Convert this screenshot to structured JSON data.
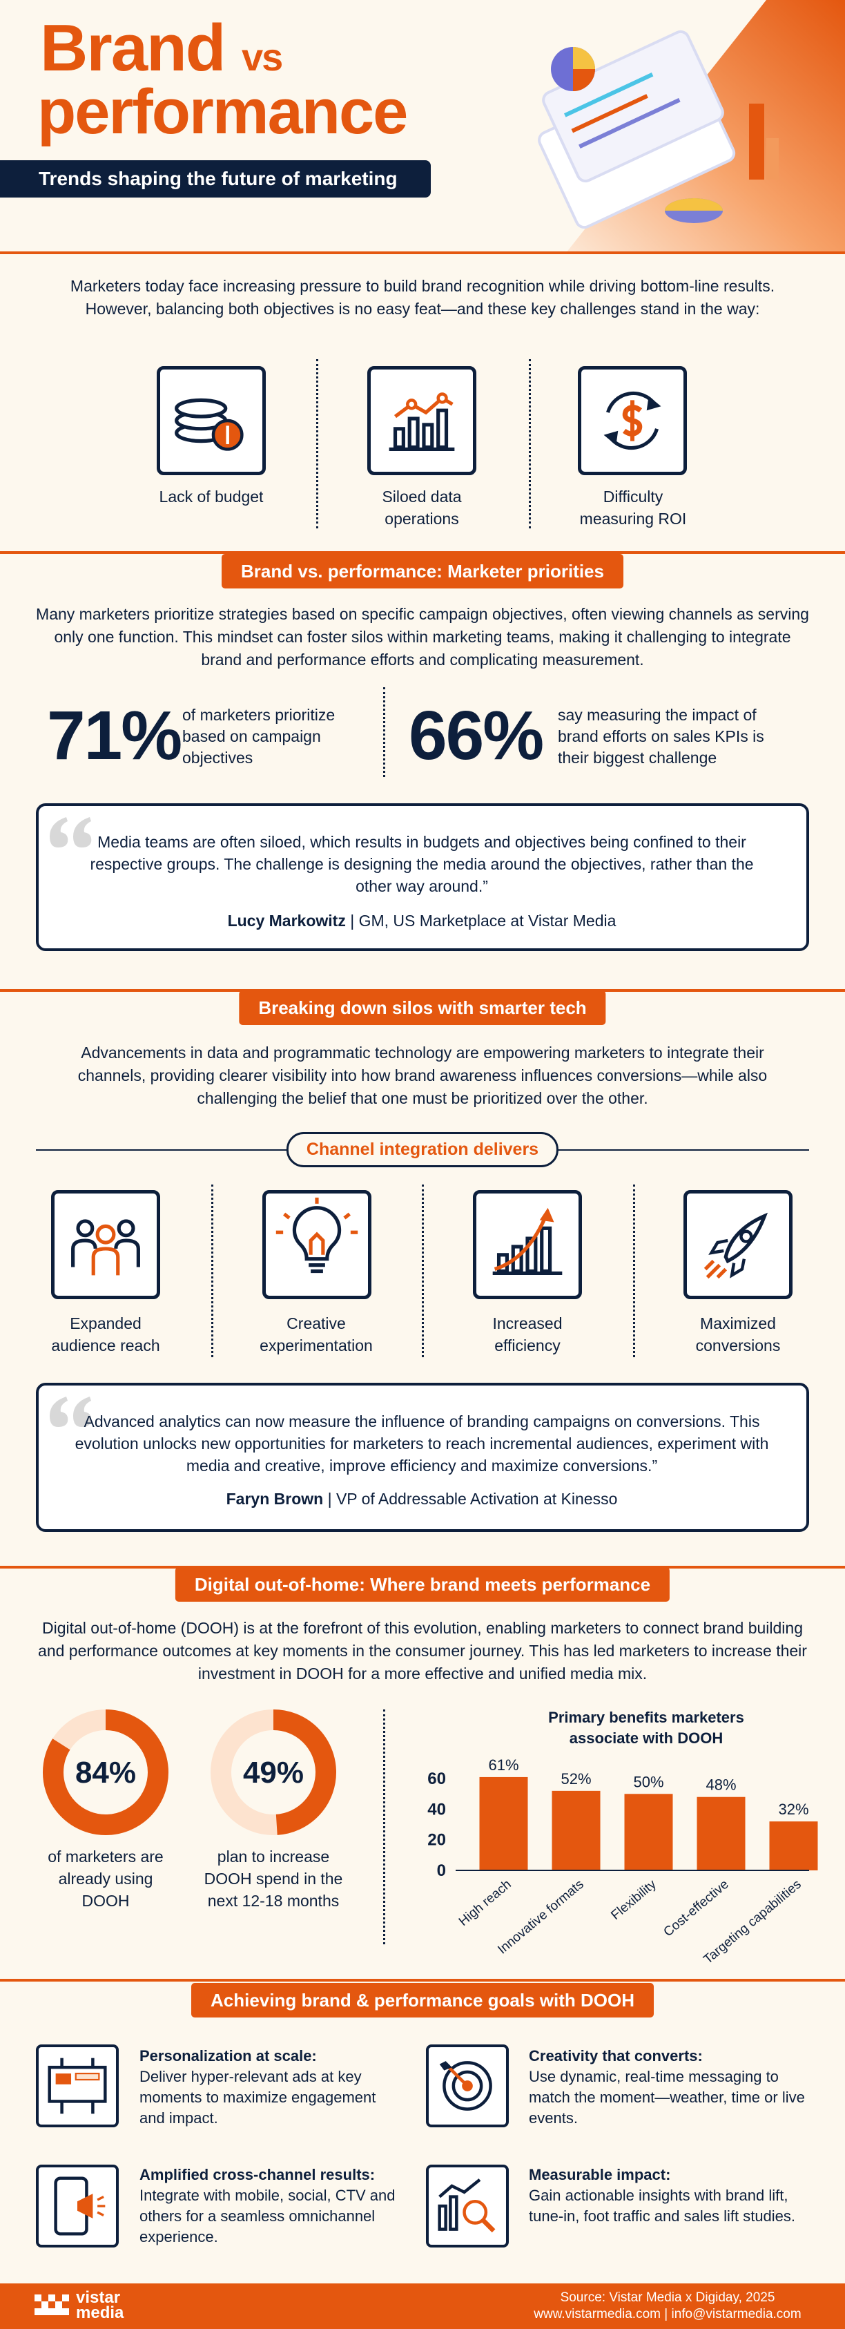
{
  "header": {
    "title_brand": "Brand",
    "title_vs": "vs",
    "title_performance": "performance",
    "subtitle": "Trends shaping the future of marketing"
  },
  "intro": {
    "text": "Marketers today face increasing pressure to build brand recognition while driving bottom-line results. However, balancing both objectives is no easy feat—and these key challenges stand in the way:",
    "challenges": [
      "Lack of budget",
      "Siloed data operations",
      "Difficulty measuring ROI"
    ]
  },
  "priorities": {
    "heading": "Brand vs. performance: Marketer priorities",
    "text": "Many marketers prioritize strategies based on specific campaign objectives, often viewing channels as serving only one function. This mindset can foster silos within marketing teams, making it challenging to integrate brand and performance efforts and complicating measurement.",
    "stats": [
      {
        "figure": "71%",
        "text": "of marketers prioritize based on campaign objectives"
      },
      {
        "figure": "66%",
        "text": "say measuring the impact of brand efforts on sales KPIs is their biggest challenge"
      }
    ],
    "quote": {
      "text": "Media teams are often siloed, which results in budgets and objectives being confined to their respective groups. The challenge is designing the media around the objectives, rather than the other way around.”",
      "name": "Lucy Markowitz",
      "role": "| GM, US Marketplace at Vistar Media"
    }
  },
  "silos": {
    "heading": "Breaking down silos with smarter tech",
    "text": "Advancements in data and programmatic technology are empowering marketers to integrate their channels, providing clearer visibility into how brand awareness influences conversions—while also challenging the belief that one must be prioritized over the other.",
    "subheading": "Channel integration delivers",
    "benefits": [
      "Expanded audience reach",
      "Creative experimentation",
      "Increased efficiency",
      "Maximized conversions"
    ],
    "quote": {
      "text": "Advanced analytics can now measure the influence of branding campaigns on conversions. This evolution unlocks new opportunities for marketers to reach incremental audiences, experiment with media and creative, improve efficiency and maximize conversions.”",
      "name": "Faryn Brown",
      "role": "| VP of Addressable Activation at Kinesso"
    }
  },
  "dooh": {
    "heading": "Digital out-of-home: Where brand meets performance",
    "text": "Digital out-of-home (DOOH) is at the forefront of this evolution, enabling marketers to connect brand building and performance outcomes at key moments in the consumer journey. This has led marketers to increase their investment in DOOH for a more effective and unified media mix.",
    "stats": {
      "type": "donut",
      "values": [
        84,
        49
      ],
      "value_labels": [
        "84%",
        "49%"
      ],
      "labels": [
        "of marketers are already using DOOH",
        "plan to increase DOOH spend in the next 12-18 months"
      ],
      "color": "#e4570f",
      "track_color": "#fde3cf"
    },
    "chart": {
      "type": "bar",
      "title": "Primary benefits marketers associate with DOOH",
      "categories": [
        "High reach",
        "Innovative formats",
        "Flexibility",
        "Cost-effective",
        "Targeting capabilities"
      ],
      "values": [
        61,
        52,
        50,
        48,
        32
      ],
      "value_labels": [
        "61%",
        "52%",
        "50%",
        "48%",
        "32%"
      ],
      "ylim": [
        0,
        70
      ],
      "yticks": [
        0,
        20,
        40,
        60
      ],
      "color": "#e4570f"
    }
  },
  "goals": {
    "heading": "Achieving brand & performance goals with DOOH",
    "items": [
      {
        "title": "Personalization at scale:",
        "text": "Deliver hyper-relevant ads at key moments to maximize engagement and impact."
      },
      {
        "title": "Creativity that converts:",
        "text": "Use dynamic, real-time messaging to match the moment—weather, time or live events."
      },
      {
        "title": "Amplified cross-channel results:",
        "text": "Integrate with mobile, social, CTV and others for a seamless omnichannel experience."
      },
      {
        "title": "Measurable impact:",
        "text": "Gain actionable insights with brand lift, tune-in, foot traffic and sales lift studies."
      }
    ]
  },
  "footer": {
    "logo": [
      "vistar",
      "media"
    ],
    "source": "Source: Vistar Media x Digiday, 2025",
    "contact": "www.vistarmedia.com | info@vistarmedia.com"
  }
}
